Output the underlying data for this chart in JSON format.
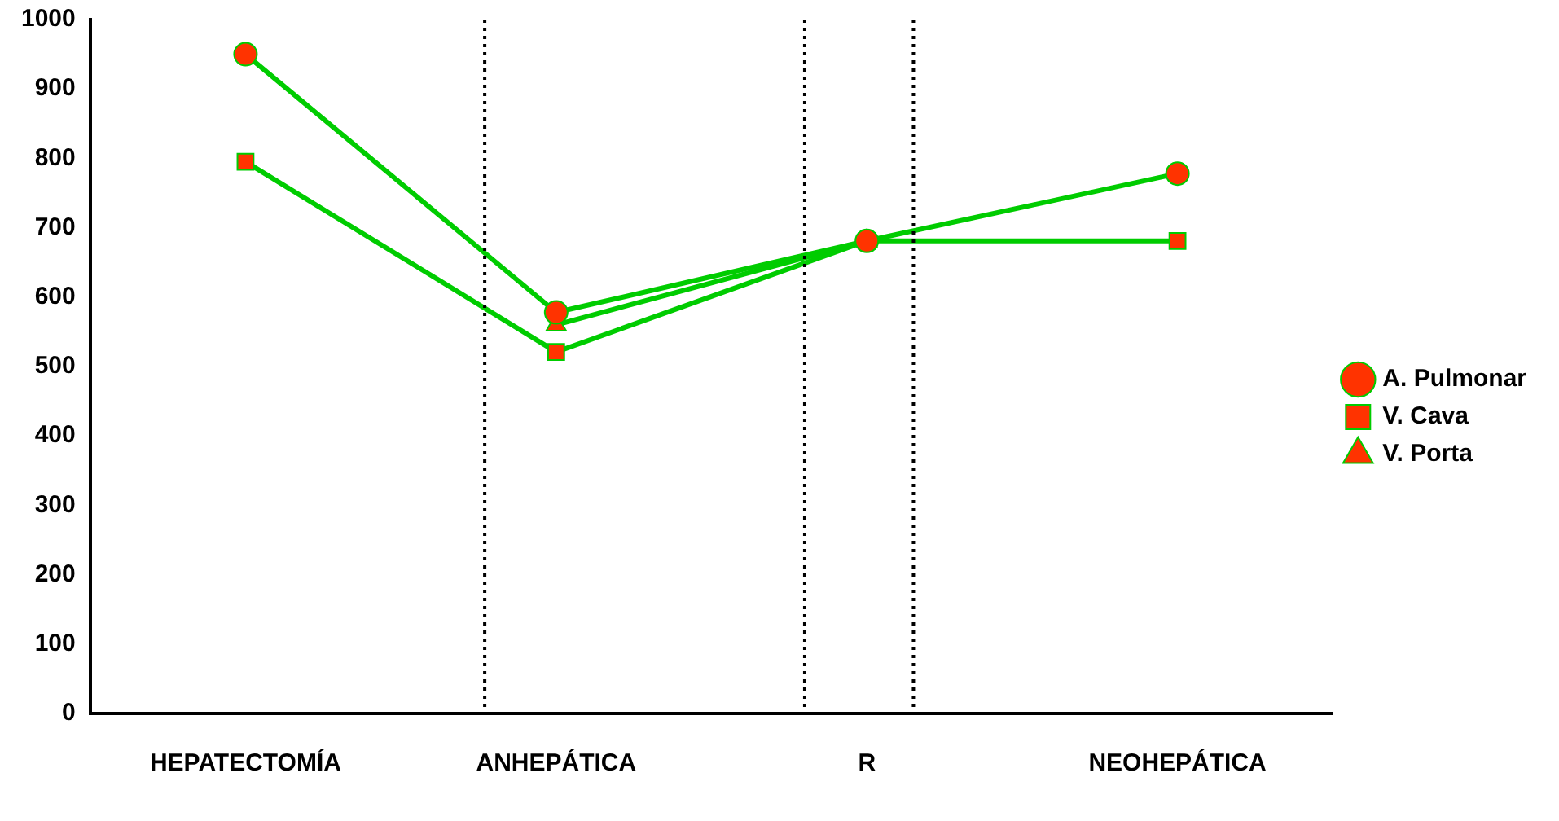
{
  "chart_data": {
    "type": "line",
    "categories": [
      "HEPATECTOMÍA",
      "ANHEPÁTICA",
      "R",
      "NEOHEPÁTICA"
    ],
    "series": [
      {
        "name": "A. Pulmonar",
        "color": "#00cc00",
        "marker": "circle",
        "colors": [
          "#ff3300",
          "#ff3300",
          "#ff3300",
          "#ff3300"
        ],
        "values": [
          950,
          578,
          681,
          778
        ]
      },
      {
        "name": "V. Cava",
        "color": "#00cc00",
        "marker": "square",
        "colors": [
          "#ff3300",
          "#ff3300",
          "#ff3300",
          "#ff3300"
        ],
        "values": [
          795,
          521,
          681,
          681
        ]
      },
      {
        "name": "V. Porta",
        "color": "#00cc00",
        "marker": "triangle",
        "colors": [
          "#ff3300",
          "#ff3300",
          "#ff3300",
          "#ff3300"
        ],
        "values": [
          null,
          560,
          681,
          null
        ]
      }
    ],
    "ylim": [
      0,
      1000
    ],
    "yticks": [
      0,
      100,
      200,
      300,
      400,
      500,
      600,
      700,
      800,
      900,
      1000
    ],
    "grid": false,
    "legend": "right",
    "line_style": "solid"
  }
}
